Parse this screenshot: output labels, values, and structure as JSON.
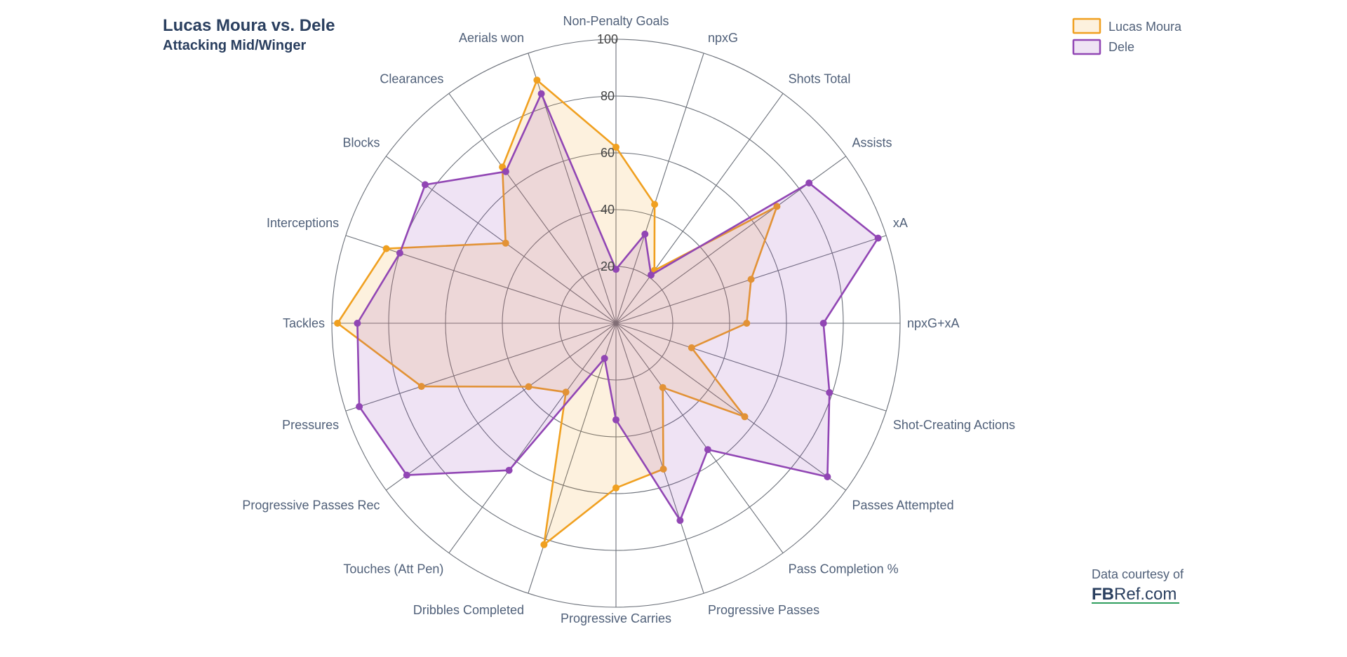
{
  "header": {
    "title": "Lucas Moura vs. Dele",
    "subtitle": "Attacking Mid/Winger"
  },
  "credit": {
    "line1": "Data courtesy of",
    "brand_bold": "FB",
    "brand_rest": "Ref.com"
  },
  "colors": {
    "series_a": "#f0a020",
    "series_b": "#9146b4",
    "grid": "#6b7079",
    "underline": "#2e9e5e"
  },
  "chart_data": {
    "type": "radar",
    "title": "Lucas Moura vs. Dele",
    "subtitle": "Attacking Mid/Winger",
    "radial_range": [
      0,
      100
    ],
    "radial_ticks": [
      20,
      40,
      60,
      80,
      100
    ],
    "legend_position": "top-right",
    "grid": true,
    "categories": [
      "Non-Penalty Goals",
      "npxG",
      "Shots Total",
      "Assists",
      "xA",
      "npxG+xA",
      "Shot-Creating Actions",
      "Passes Attempted",
      "Pass Completion %",
      "Progressive Passes",
      "Progressive Carries",
      "Dribbles Completed",
      "Touches (Att Pen)",
      "Progressive Passes Rec",
      "Pressures",
      "Tackles",
      "Interceptions",
      "Blocks",
      "Clearances",
      "Aerials won"
    ],
    "series": [
      {
        "name": "Lucas Moura",
        "values": [
          62,
          44,
          23,
          70,
          50,
          46,
          28,
          56,
          28,
          54,
          58,
          82,
          30,
          38,
          72,
          98,
          85,
          48,
          68,
          90
        ]
      },
      {
        "name": "Dele",
        "values": [
          19,
          33,
          21,
          84,
          97,
          73,
          79,
          92,
          55,
          73,
          34,
          13,
          64,
          91,
          95,
          91,
          80,
          83,
          66,
          85
        ]
      }
    ]
  }
}
